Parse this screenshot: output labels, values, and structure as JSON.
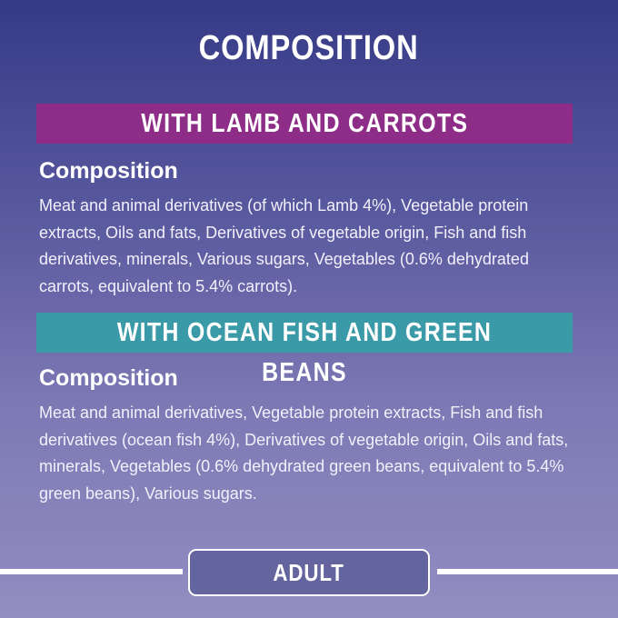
{
  "title": "COMPOSITION",
  "sections": [
    {
      "banner": "WITH LAMB AND CARROTS",
      "banner_color": "#8e2d88",
      "heading": "Composition",
      "text": "Meat and animal derivatives (of which Lamb 4%), Vegetable protein extracts, Oils and fats, Derivatives of vegetable origin, Fish and fish derivatives, minerals, Various sugars, Vegetables (0.6% dehydrated carrots, equivalent to 5.4% carrots)."
    },
    {
      "banner": "WITH OCEAN FISH AND GREEN BEANS",
      "banner_color": "#3b9aa8",
      "heading": "Composition",
      "text": "Meat and animal derivatives, Vegetable protein extracts, Fish and fish derivatives (ocean fish 4%), Derivatives of vegetable origin, Oils and fats, minerals, Vegetables (0.6% dehydrated green beans, equivalent to 5.4% green beans), Various sugars."
    }
  ],
  "badge": "ADULT"
}
